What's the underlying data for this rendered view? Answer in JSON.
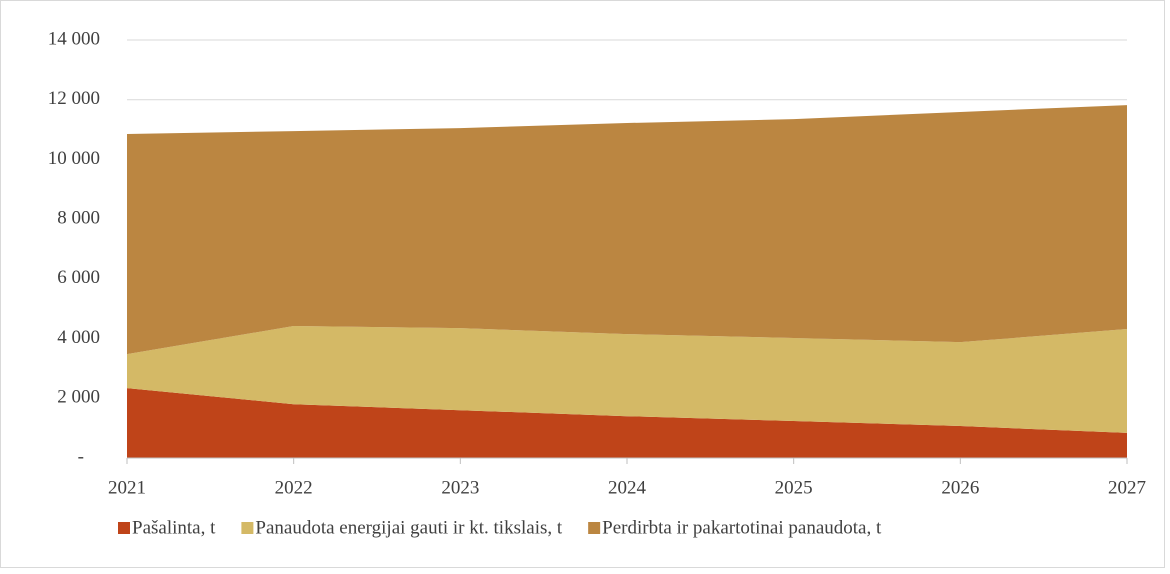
{
  "chart_data": {
    "type": "stacked_area",
    "categories": [
      "2021",
      "2022",
      "2023",
      "2024",
      "2025",
      "2026",
      "2027"
    ],
    "series": [
      {
        "name": "Pašalinta, t",
        "color": "#bf4419",
        "values": [
          2340,
          1800,
          1600,
          1400,
          1240,
          1070,
          840
        ]
      },
      {
        "name": "Panaudota energijai gauti ir kt. tikslais, t",
        "color": "#d4b966",
        "values": [
          1140,
          2620,
          2750,
          2750,
          2780,
          2810,
          3480
        ]
      },
      {
        "name": "Perdirbta ir pakartotinai panaudota, t",
        "color": "#bb8641",
        "values": [
          7370,
          6530,
          6700,
          7070,
          7330,
          7710,
          7500
        ]
      }
    ],
    "ylim": [
      0,
      14000
    ],
    "yticks": [
      {
        "value": 0,
        "label": "-"
      },
      {
        "value": 2000,
        "label": "2 000"
      },
      {
        "value": 4000,
        "label": "4 000"
      },
      {
        "value": 6000,
        "label": "6 000"
      },
      {
        "value": 8000,
        "label": "8 000"
      },
      {
        "value": 10000,
        "label": "10 000"
      },
      {
        "value": 12000,
        "label": "12 000"
      },
      {
        "value": 14000,
        "label": "14 000"
      }
    ],
    "grid": true,
    "legend": "bottom"
  }
}
